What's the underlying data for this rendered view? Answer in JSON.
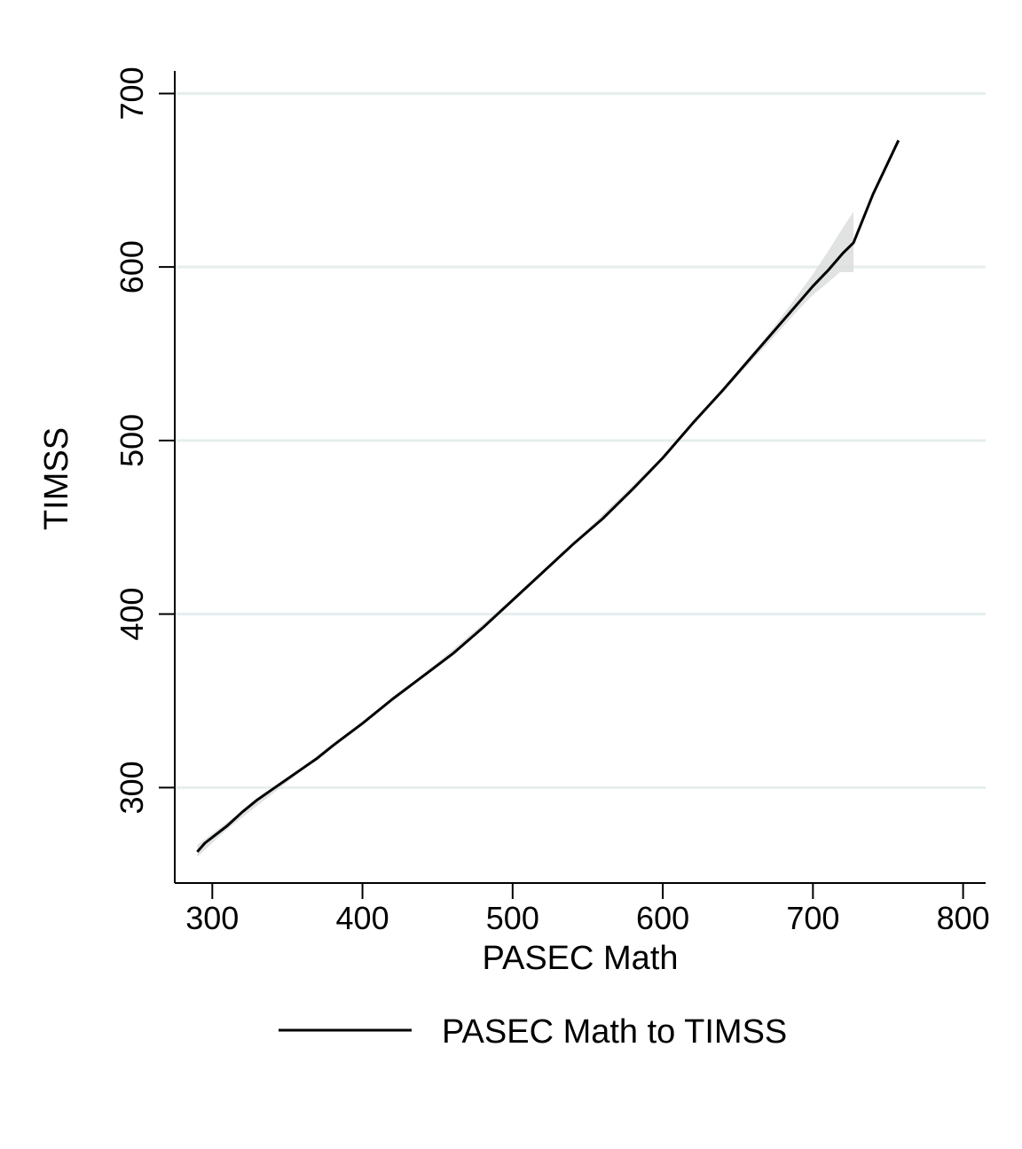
{
  "chart_data": {
    "type": "line",
    "title": "",
    "xlabel": "PASEC Math",
    "ylabel": "TIMSS",
    "xlim": [
      275,
      815
    ],
    "ylim": [
      245,
      713
    ],
    "x_ticks": [
      300,
      400,
      500,
      600,
      700,
      800
    ],
    "y_ticks": [
      300,
      400,
      500,
      600,
      700
    ],
    "grid": "horizontal",
    "legend_position": "bottom",
    "colors": {
      "line": "#000000",
      "band": "#d9dcdc",
      "grid": "#e6eeee",
      "axis": "#000000"
    },
    "series": [
      {
        "name": "PASEC Math to TIMSS",
        "x": [
          290,
          295,
          310,
          320,
          330,
          340,
          350,
          360,
          370,
          380,
          400,
          420,
          440,
          460,
          480,
          500,
          520,
          540,
          560,
          580,
          600,
          620,
          640,
          660,
          680,
          700,
          710,
          720,
          727,
          740,
          757
        ],
        "y": [
          263,
          268,
          278,
          286,
          293,
          299,
          305,
          311,
          317,
          324,
          337,
          351,
          364,
          377,
          392,
          408,
          424,
          440,
          455,
          472,
          490,
          510,
          529,
          549,
          569,
          589,
          598,
          608,
          614,
          642,
          673
        ]
      }
    ],
    "confidence_band": {
      "x": [
        290,
        310,
        360,
        400,
        450,
        500,
        550,
        600,
        640,
        670,
        690,
        700,
        710,
        718,
        727
      ],
      "lower": [
        260,
        276,
        310,
        336,
        370,
        407,
        447,
        489,
        528,
        556,
        575,
        584,
        591,
        597,
        597
      ],
      "upper": [
        267,
        280,
        312,
        338,
        372,
        409,
        449,
        491,
        530,
        561,
        584,
        596,
        609,
        620,
        632
      ]
    }
  }
}
